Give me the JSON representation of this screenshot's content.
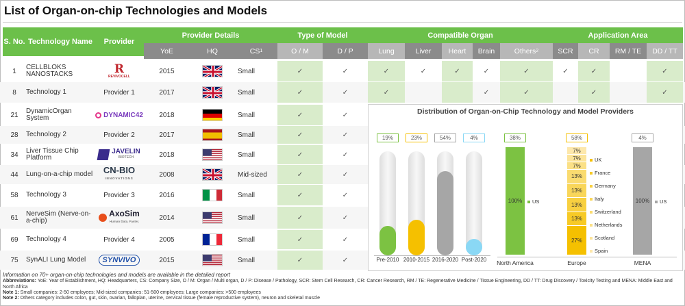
{
  "title": "List of Organ-on-chip Technologies and Models",
  "headers": {
    "sno": "S. No.",
    "tech": "Technology Name",
    "provider": "Provider",
    "provider_details": "Provider Details",
    "yoe": "YoE",
    "hq": "HQ",
    "cs": "CS",
    "cs_sup": "1",
    "type_of_model": "Type of Model",
    "om": "O / M",
    "dp": "D / P",
    "compatible_organ": "Compatible Organ",
    "lung": "Lung",
    "liver": "Liver",
    "heart": "Heart",
    "brain": "Brain",
    "others": "Others",
    "others_sup": "2",
    "application_area": "Application Area",
    "scr": "SCR",
    "cr": "CR",
    "rmte": "RM / TE",
    "ddtt": "DD / TT"
  },
  "tick": "✓",
  "rows": [
    {
      "sno": "1",
      "name": "CELLBLOKS NANOSTACKS",
      "provider_logo": "REVIVOCELL",
      "provider": "",
      "yoe": "2015",
      "hq": "UK",
      "cs": "Small",
      "ticks": [
        true,
        true,
        true,
        true,
        true,
        true,
        true,
        true,
        true,
        false,
        true
      ]
    },
    {
      "sno": "8",
      "name": "Technology 1",
      "provider_logo": "",
      "provider": "Provider 1",
      "yoe": "2017",
      "hq": "UK",
      "cs": "Small",
      "ticks": [
        true,
        true,
        true,
        false,
        false,
        true,
        true,
        false,
        true,
        false,
        true
      ]
    },
    {
      "sno": "21",
      "name": "DynamicOrgan System",
      "provider_logo": "DYNAMIC42",
      "provider": "",
      "yoe": "2018",
      "hq": "Germany",
      "cs": "Small",
      "ticks": [
        true,
        true
      ]
    },
    {
      "sno": "28",
      "name": "Technology 2",
      "provider_logo": "",
      "provider": "Provider 2",
      "yoe": "2017",
      "hq": "Spain",
      "cs": "Small",
      "ticks": [
        true,
        true
      ]
    },
    {
      "sno": "34",
      "name": "Liver Tissue Chip Platform",
      "provider_logo": "JAVELIN",
      "provider_logo_sub": "BIOTECH",
      "provider": "",
      "yoe": "2018",
      "hq": "US",
      "cs": "Small",
      "ticks": [
        true,
        true
      ]
    },
    {
      "sno": "44",
      "name": "Lung-on-a-chip model",
      "provider_logo": "CN-BIO",
      "provider_logo_sub": "INNOVATIONS",
      "provider": "",
      "yoe": "2008",
      "hq": "UK",
      "cs": "Mid-sized",
      "ticks": [
        true,
        true
      ]
    },
    {
      "sno": "58",
      "name": "Technology 3",
      "provider_logo": "",
      "provider": "Provider 3",
      "yoe": "2016",
      "hq": "Italy",
      "cs": "Small",
      "ticks": [
        true,
        true
      ]
    },
    {
      "sno": "61",
      "name": "NerveSim (Nerve-on-a-chip)",
      "provider_logo": "AxoSim",
      "provider_logo_sub": "Human Data. Faster.",
      "provider": "",
      "yoe": "2014",
      "hq": "US",
      "cs": "Small",
      "ticks": [
        true,
        true
      ]
    },
    {
      "sno": "69",
      "name": "Technology 4",
      "provider_logo": "",
      "provider": "Provider 4",
      "yoe": "2005",
      "hq": "France",
      "cs": "Small",
      "ticks": [
        true,
        true
      ]
    },
    {
      "sno": "75",
      "name": "SynALI Lung Model",
      "provider_logo": "SYNVIVO",
      "provider": "",
      "yoe": "2015",
      "hq": "US",
      "cs": "Small",
      "ticks": [
        true,
        true
      ]
    }
  ],
  "chart_data": {
    "type": "bar",
    "title": "Distribution of Organ-on-Chip Technology and Model Providers",
    "eras": [
      {
        "label": "Pre-2010",
        "value": 19,
        "display": "19%",
        "color": "#7cc242"
      },
      {
        "label": "2010-2015",
        "value": 23,
        "display": "23%",
        "color": "#f5c000"
      },
      {
        "label": "2016-2020",
        "value": 54,
        "display": "54%",
        "color": "#a6a6a6"
      },
      {
        "label": "Post-2020",
        "value": 4,
        "display": "4%",
        "color": "#8ad8f5"
      }
    ],
    "regions": [
      {
        "label": "North America",
        "share": "38%",
        "color": "#7cc242",
        "segments": [
          {
            "name": "US",
            "value": 100,
            "display": "100%"
          }
        ]
      },
      {
        "label": "Europe",
        "share": "58%",
        "color": "#f5c000",
        "segments": [
          {
            "name": "UK",
            "value": 27,
            "display": "27%"
          },
          {
            "name": "France",
            "value": 13,
            "display": "13%"
          },
          {
            "name": "Germany",
            "value": 13,
            "display": "13%"
          },
          {
            "name": "Italy",
            "value": 13,
            "display": "13%"
          },
          {
            "name": "Switzerland",
            "value": 13,
            "display": "13%"
          },
          {
            "name": "Netherlands",
            "value": 7,
            "display": "7%"
          },
          {
            "name": "Scotland",
            "value": 7,
            "display": "7%"
          },
          {
            "name": "Spain",
            "value": 7,
            "display": "7%"
          }
        ]
      },
      {
        "label": "MENA",
        "share": "4%",
        "color": "#a6a6a6",
        "segments": [
          {
            "name": "US",
            "value": 100,
            "display": "100%"
          }
        ]
      }
    ]
  },
  "footnotes": {
    "line1": "Information on 70+ organ-on-chip technologies and models are available in the detailed report",
    "abbr_label": "Abbreviations:",
    "abbr": " YoE: Year of Establishment, HQ: Headquarters, CS: Company Size, O / M: Organ / Multi organ, D / P: Disease / Pathology, SCR: Stem Cell Research, CR: Cancer Research, RM / TE: Regenerative Medicine / Tissue Engineering, DD / TT: Drug Discovery / Toxicity Testing and MENA: Middle East and North Africa",
    "note1_label": "Note 1:",
    "note1": " Small companies: 2-50 employees; Mid-sized companies: 51-500 employees; Large companies: >500 employees",
    "note2_label": "Note 2:",
    "note2": " Others category includes colon, gut, skin, ovarian, fallopian, uterine, cervical tissue (female reproductive system), neuron and skeletal muscle"
  }
}
